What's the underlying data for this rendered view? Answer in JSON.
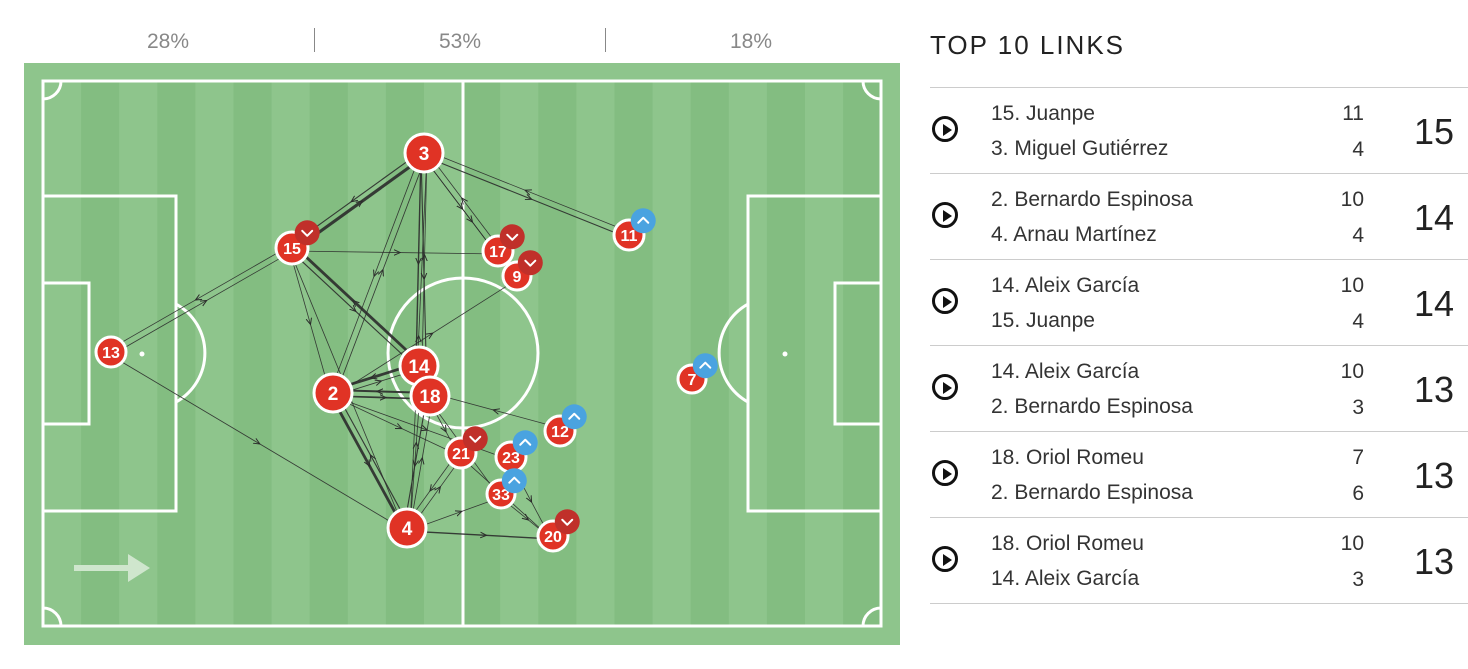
{
  "zones": [
    "28%",
    "53%",
    "18%"
  ],
  "panel": {
    "title": "TOP 10 LINKS"
  },
  "links": [
    {
      "p1": "15. Juanpe",
      "c1": "11",
      "p2": "3. Miguel Gutiérrez",
      "c2": "4",
      "total": "15"
    },
    {
      "p1": "2. Bernardo Espinosa",
      "c1": "10",
      "p2": "4. Arnau Martínez",
      "c2": "4",
      "total": "14"
    },
    {
      "p1": "14. Aleix García",
      "c1": "10",
      "p2": "15. Juanpe",
      "c2": "4",
      "total": "14"
    },
    {
      "p1": "14. Aleix García",
      "c1": "10",
      "p2": "2. Bernardo Espinosa",
      "c2": "3",
      "total": "13"
    },
    {
      "p1": "18. Oriol Romeu",
      "c1": "7",
      "p2": "2. Bernardo Espinosa",
      "c2": "6",
      "total": "13"
    },
    {
      "p1": "18. Oriol Romeu",
      "c1": "10",
      "p2": "14. Aleix García",
      "c2": "3",
      "total": "13"
    }
  ],
  "colors": {
    "pitch_light": "#8ec58c",
    "pitch_dark": "#83bd81",
    "player": "#e03325",
    "sub_off": "#c0302a",
    "sub_on": "#4aa3e0",
    "pass_line": "#2b2b2b"
  },
  "icons": {
    "play": "play-circle-icon",
    "sub_off": "chevron-down-icon",
    "sub_on": "chevron-up-icon",
    "direction": "direction-arrow-icon"
  },
  "players": [
    {
      "num": "3",
      "sub": ""
    },
    {
      "num": "15",
      "sub": "off"
    },
    {
      "num": "17",
      "sub": "off"
    },
    {
      "num": "9",
      "sub": "off"
    },
    {
      "num": "11",
      "sub": "on"
    },
    {
      "num": "13",
      "sub": ""
    },
    {
      "num": "14",
      "sub": ""
    },
    {
      "num": "2",
      "sub": ""
    },
    {
      "num": "18",
      "sub": ""
    },
    {
      "num": "7",
      "sub": "on"
    },
    {
      "num": "12",
      "sub": "on"
    },
    {
      "num": "21",
      "sub": "off"
    },
    {
      "num": "23",
      "sub": "on"
    },
    {
      "num": "33",
      "sub": "on"
    },
    {
      "num": "4",
      "sub": ""
    },
    {
      "num": "20",
      "sub": "off"
    }
  ],
  "passes": [
    {
      "from": "15",
      "to": "3",
      "count": 11
    },
    {
      "from": "3",
      "to": "15",
      "count": 4
    },
    {
      "from": "2",
      "to": "4",
      "count": 10
    },
    {
      "from": "4",
      "to": "2",
      "count": 4
    },
    {
      "from": "14",
      "to": "15",
      "count": 10
    },
    {
      "from": "15",
      "to": "14",
      "count": 4
    },
    {
      "from": "14",
      "to": "2",
      "count": 10
    },
    {
      "from": "2",
      "to": "14",
      "count": 3
    },
    {
      "from": "18",
      "to": "2",
      "count": 7
    },
    {
      "from": "2",
      "to": "18",
      "count": 6
    },
    {
      "from": "18",
      "to": "14",
      "count": 10
    },
    {
      "from": "14",
      "to": "18",
      "count": 3
    },
    {
      "from": "3",
      "to": "11",
      "count": 4
    },
    {
      "from": "11",
      "to": "3",
      "count": 1
    },
    {
      "from": "3",
      "to": "17",
      "count": 3
    },
    {
      "from": "17",
      "to": "3",
      "count": 1
    },
    {
      "from": "3",
      "to": "9",
      "count": 2
    },
    {
      "from": "13",
      "to": "15",
      "count": 2
    },
    {
      "from": "15",
      "to": "13",
      "count": 1
    },
    {
      "from": "13",
      "to": "4",
      "count": 3
    },
    {
      "from": "15",
      "to": "17",
      "count": 1
    },
    {
      "from": "15",
      "to": "2",
      "count": 2
    },
    {
      "from": "2",
      "to": "3",
      "count": 3
    },
    {
      "from": "3",
      "to": "2",
      "count": 1
    },
    {
      "from": "3",
      "to": "14",
      "count": 5
    },
    {
      "from": "14",
      "to": "3",
      "count": 2
    },
    {
      "from": "3",
      "to": "18",
      "count": 4
    },
    {
      "from": "4",
      "to": "3",
      "count": 2
    },
    {
      "from": "15",
      "to": "4",
      "count": 1
    },
    {
      "from": "4",
      "to": "20",
      "count": 5
    },
    {
      "from": "4",
      "to": "33",
      "count": 2
    },
    {
      "from": "4",
      "to": "18",
      "count": 3
    },
    {
      "from": "18",
      "to": "4",
      "count": 4
    },
    {
      "from": "4",
      "to": "14",
      "count": 2
    },
    {
      "from": "4",
      "to": "21",
      "count": 2
    },
    {
      "from": "21",
      "to": "4",
      "count": 1
    },
    {
      "from": "2",
      "to": "21",
      "count": 2
    },
    {
      "from": "2",
      "to": "23",
      "count": 1
    },
    {
      "from": "2",
      "to": "9",
      "count": 1
    },
    {
      "from": "23",
      "to": "20",
      "count": 1
    },
    {
      "from": "21",
      "to": "20",
      "count": 1
    },
    {
      "from": "12",
      "to": "18",
      "count": 1
    },
    {
      "from": "18",
      "to": "21",
      "count": 2
    },
    {
      "from": "18",
      "to": "33",
      "count": 1
    },
    {
      "from": "33",
      "to": "20",
      "count": 1
    }
  ]
}
